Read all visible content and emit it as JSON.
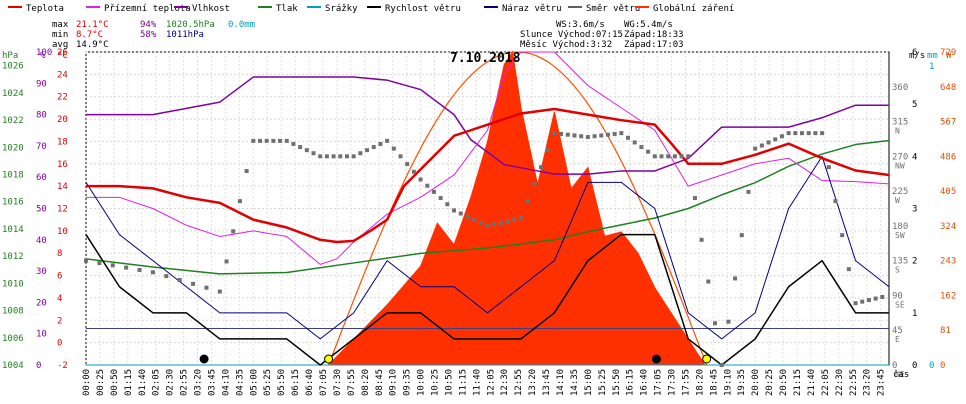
{
  "legend": [
    {
      "label": "Teplota",
      "color": "#e00000"
    },
    {
      "label": "Přízemní teplota",
      "color": "#e020e0"
    },
    {
      "label": "Vlhkost",
      "color": "#8000a0"
    },
    {
      "label": "Tlak",
      "color": "#208020"
    },
    {
      "label": "Srážky",
      "color": "#00a0c0"
    },
    {
      "label": "Rychlost větru",
      "color": "#000000"
    },
    {
      "label": "Náraz větru",
      "color": "#000080"
    },
    {
      "label": "Směr větru",
      "color": "#606060"
    },
    {
      "label": "Globální záření",
      "color": "#ff3000"
    }
  ],
  "stats": {
    "max_label": "max",
    "max_t": "21.1°C",
    "max_h": "94%",
    "max_p": "1020.5hPa",
    "max_r": "0.0mm",
    "min_label": "min",
    "min_t": "8.7°C",
    "min_h": "58%",
    "min_p": "1011hPa",
    "avg_label": "avg",
    "avg_t": "14.9°C",
    "ws": "WS:3.6m/s",
    "wg": "WG:5.4m/s",
    "sun": "Slunce Východ:07:15",
    "sun_set": "Západ:18:33",
    "moon": "Měsíc Východ:3:32",
    "moon_set": "Západ:17:03"
  },
  "date_title": "7.10.2018",
  "units": {
    "hpa": "hPa",
    "pct": "%",
    "degc": "°C",
    "ms": "m/s",
    "mm": "mm",
    "w": "W",
    "cas": "čas"
  },
  "axes": {
    "hpa": [
      "1026",
      "1024",
      "1022",
      "1020",
      "1018",
      "1016",
      "1014",
      "1012",
      "1010",
      "1008",
      "1006",
      "1004"
    ],
    "pct": [
      "100",
      "90",
      "80",
      "70",
      "60",
      "50",
      "40",
      "30",
      "20",
      "10",
      "0"
    ],
    "temp": [
      "26",
      "24",
      "22",
      "20",
      "18",
      "16",
      "14",
      "12",
      "10",
      "8",
      "6",
      "4",
      "2",
      "0",
      "-2"
    ],
    "dir": [
      "360",
      "315",
      "270",
      "225",
      "180",
      "135",
      "90",
      "45",
      "0"
    ],
    "dir_names": [
      "N",
      "NW",
      "W",
      "SW",
      "S",
      "SE",
      "E",
      "NE"
    ],
    "ms": [
      "6",
      "5",
      "4",
      "3",
      "2",
      "1",
      "0"
    ],
    "mm": [
      "1",
      "0"
    ],
    "w": [
      "729",
      "648",
      "567",
      "486",
      "405",
      "324",
      "243",
      "162",
      "81",
      "0"
    ],
    "x": [
      "00:00",
      "00:25",
      "00:50",
      "01:15",
      "01:40",
      "02:05",
      "02:30",
      "02:55",
      "03:20",
      "03:45",
      "04:10",
      "04:35",
      "05:00",
      "05:25",
      "05:50",
      "06:15",
      "06:40",
      "07:05",
      "07:30",
      "07:55",
      "08:20",
      "08:45",
      "09:10",
      "09:35",
      "10:00",
      "10:25",
      "10:50",
      "11:15",
      "11:40",
      "12:05",
      "12:30",
      "12:55",
      "13:20",
      "13:45",
      "14:10",
      "14:35",
      "15:00",
      "15:25",
      "15:50",
      "16:15",
      "16:40",
      "17:05",
      "17:30",
      "17:55",
      "18:20",
      "18:45",
      "19:10",
      "19:35",
      "20:00",
      "20:25",
      "20:50",
      "21:15",
      "21:40",
      "22:05",
      "22:30",
      "22:55",
      "23:20",
      "23:45"
    ]
  },
  "chart_data": {
    "type": "line",
    "title": "7.10.2018",
    "x_unit": "time of day (h)",
    "series": [
      {
        "name": "Teplota",
        "unit": "°C",
        "x": [
          0,
          1,
          2,
          3,
          4,
          5,
          6,
          7,
          7.5,
          8,
          8.5,
          9,
          9.5,
          10,
          10.5,
          11,
          11.5,
          12,
          12.5,
          13,
          14,
          15,
          16,
          17,
          17.5,
          18,
          19,
          20,
          21,
          22,
          23,
          24
        ],
        "values": [
          14,
          14,
          13.8,
          13,
          12.5,
          11,
          10.3,
          9.2,
          9,
          9.1,
          10,
          11,
          14,
          15.5,
          17,
          18.5,
          19,
          19.5,
          20,
          20.5,
          20.9,
          20.4,
          19.9,
          19.5,
          17.8,
          16,
          16,
          16.8,
          17.8,
          16.5,
          15.4,
          15
        ]
      },
      {
        "name": "Přízemní teplota",
        "unit": "°C",
        "x": [
          0,
          1,
          2,
          3,
          4,
          5,
          6,
          7,
          7.5,
          8,
          9,
          10,
          11,
          11.5,
          12,
          12.5,
          13,
          14,
          15,
          16,
          17,
          18,
          19,
          20,
          21,
          22,
          23,
          24
        ],
        "values": [
          13,
          13,
          12,
          10.5,
          9.5,
          10,
          9.5,
          7,
          7.5,
          9,
          11.5,
          13,
          15,
          17,
          19,
          24,
          26,
          26,
          23,
          21,
          19,
          14,
          15,
          16,
          16.5,
          14.5,
          14.4,
          14.2
        ]
      },
      {
        "name": "Vlhkost",
        "unit": "%",
        "x": [
          0,
          1,
          2,
          3,
          4,
          5,
          6,
          7,
          8,
          9,
          10,
          11,
          11.5,
          12,
          12.5,
          13,
          14,
          15,
          16,
          17,
          18,
          19,
          20,
          21,
          22,
          23,
          24
        ],
        "values": [
          80,
          80,
          80,
          82,
          84,
          92,
          92,
          92,
          92,
          91,
          88,
          80,
          72,
          68,
          64,
          63,
          61,
          61,
          62,
          62,
          66,
          76,
          76,
          76,
          79,
          83,
          83
        ]
      },
      {
        "name": "Tlak",
        "unit": "hPa",
        "x": [
          0,
          2,
          4,
          6,
          8,
          10,
          12,
          14,
          15,
          16,
          17,
          18,
          19,
          20,
          21,
          22,
          23,
          24
        ],
        "values": [
          1011.8,
          1011.2,
          1010.7,
          1010.8,
          1011.5,
          1012.2,
          1012.6,
          1013.2,
          1013.8,
          1014.3,
          1014.8,
          1015.5,
          1016.5,
          1017.4,
          1018.6,
          1019.5,
          1020.2,
          1020.5
        ]
      },
      {
        "name": "Rychlost větru",
        "unit": "m/s",
        "x": [
          0,
          1,
          2,
          3,
          4,
          5,
          6,
          7,
          8,
          9,
          10,
          11,
          12,
          13,
          14,
          15,
          16,
          17,
          18,
          19,
          20,
          21,
          22,
          23,
          24
        ],
        "values": [
          2.5,
          1.5,
          1,
          1,
          0.5,
          0.5,
          0.5,
          0,
          0.5,
          1,
          1,
          0.5,
          0.5,
          0.5,
          1,
          2,
          2.5,
          2.5,
          0.5,
          0,
          0.5,
          1.5,
          2,
          1,
          1
        ]
      },
      {
        "name": "Náraz větru",
        "unit": "m/s",
        "x": [
          0,
          1,
          2,
          3,
          4,
          5,
          6,
          7,
          8,
          9,
          10,
          11,
          12,
          13,
          14,
          15,
          16,
          17,
          18,
          19,
          20,
          21,
          22,
          23,
          24
        ],
        "values": [
          3.5,
          2.5,
          2,
          1.5,
          1,
          1,
          1,
          0.5,
          1,
          2,
          1.5,
          1.5,
          1,
          1.5,
          2,
          3.5,
          3.5,
          3,
          1,
          0.5,
          1,
          3,
          4,
          2,
          1.5
        ]
      },
      {
        "name": "Směr větru",
        "unit": "°",
        "x": [
          0,
          2,
          4,
          5,
          6,
          7,
          8,
          9,
          10,
          11,
          12,
          13,
          14,
          15,
          16,
          17,
          18,
          19,
          20,
          21,
          22,
          23,
          24
        ],
        "values": [
          135,
          120,
          95,
          290,
          290,
          270,
          270,
          290,
          240,
          200,
          180,
          190,
          300,
          295,
          300,
          270,
          270,
          0,
          280,
          300,
          300,
          80,
          90
        ]
      },
      {
        "name": "Globální záření",
        "unit": "W/m²",
        "x": [
          7.25,
          8,
          9,
          10,
          10.5,
          11,
          11.5,
          12,
          12.5,
          12.75,
          13,
          13.5,
          14,
          14.5,
          15,
          15.5,
          16,
          16.5,
          17,
          17.5,
          18,
          18.5
        ],
        "values": [
          0,
          60,
          140,
          230,
          330,
          280,
          390,
          520,
          700,
          729,
          600,
          420,
          590,
          410,
          460,
          300,
          310,
          260,
          180,
          120,
          60,
          0
        ]
      },
      {
        "name": "Srážky",
        "unit": "mm",
        "x": [
          0,
          24
        ],
        "values": [
          0,
          0
        ]
      }
    ],
    "y_ranges": {
      "hpa": [
        1004,
        1027
      ],
      "pct": [
        0,
        100
      ],
      "temp": [
        -2,
        26
      ],
      "ms": [
        0,
        6
      ],
      "w": [
        0,
        729
      ]
    },
    "grid": true
  }
}
